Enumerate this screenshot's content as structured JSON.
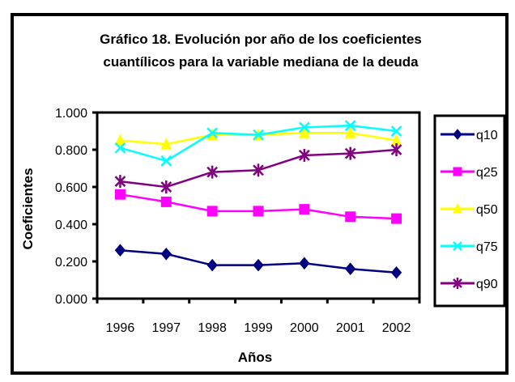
{
  "chart_data": {
    "type": "line",
    "title": [
      "Gráfico 18. Evolución por año de los coeficientes",
      "cuantílicos para la variable mediana de la deuda"
    ],
    "xlabel": "Años",
    "ylabel": "Coeficientes",
    "categories": [
      "1996",
      "1997",
      "1998",
      "1999",
      "2000",
      "2001",
      "2002"
    ],
    "ylim": [
      0,
      1
    ],
    "yticks": [
      "0.000",
      "0.200",
      "0.400",
      "0.600",
      "0.800",
      "1.000"
    ],
    "ytick_values": [
      0,
      0.2,
      0.4,
      0.6,
      0.8,
      1.0
    ],
    "grid": false,
    "legend_position": "right",
    "series": [
      {
        "name": "q10",
        "color": "#000080",
        "marker": "diamond",
        "values": [
          0.26,
          0.24,
          0.18,
          0.18,
          0.19,
          0.16,
          0.14
        ]
      },
      {
        "name": "q25",
        "color": "#ff00ff",
        "marker": "square",
        "values": [
          0.56,
          0.52,
          0.47,
          0.47,
          0.48,
          0.44,
          0.43
        ]
      },
      {
        "name": "q50",
        "color": "#ffff00",
        "marker": "triangle",
        "values": [
          0.85,
          0.83,
          0.88,
          0.88,
          0.89,
          0.89,
          0.85
        ]
      },
      {
        "name": "q75",
        "color": "#00ffff",
        "marker": "x",
        "values": [
          0.81,
          0.74,
          0.89,
          0.88,
          0.92,
          0.93,
          0.9
        ]
      },
      {
        "name": "q90",
        "color": "#800080",
        "marker": "star",
        "values": [
          0.63,
          0.6,
          0.68,
          0.69,
          0.77,
          0.78,
          0.8
        ]
      }
    ]
  }
}
